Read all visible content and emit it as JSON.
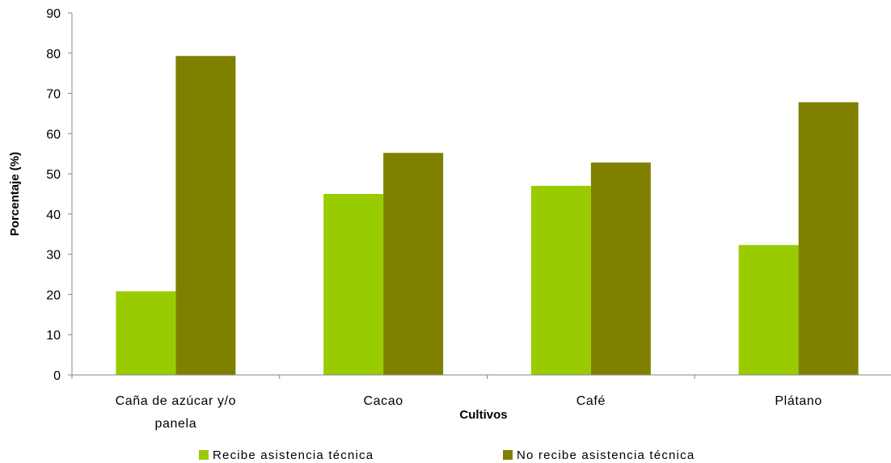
{
  "chart_data": {
    "type": "bar",
    "categories": [
      [
        "Caña de azúcar y/o",
        "panela"
      ],
      [
        "Cacao"
      ],
      [
        "Café"
      ],
      [
        "Plátano"
      ]
    ],
    "series": [
      {
        "name": "Recibe asistencia técnica",
        "color": "#99cc00",
        "values": [
          20.8,
          45.0,
          47.0,
          32.3
        ]
      },
      {
        "name": "No recibe asistencia técnica",
        "color": "#808000",
        "values": [
          79.3,
          55.2,
          52.8,
          67.8
        ]
      }
    ],
    "xlabel": "Cultivos",
    "ylabel": "Porcentaje (%)",
    "ylim": [
      0,
      90
    ],
    "yticks": [
      0,
      10,
      20,
      30,
      40,
      50,
      60,
      70,
      80,
      90
    ],
    "grid": false,
    "legend": "bottom"
  }
}
